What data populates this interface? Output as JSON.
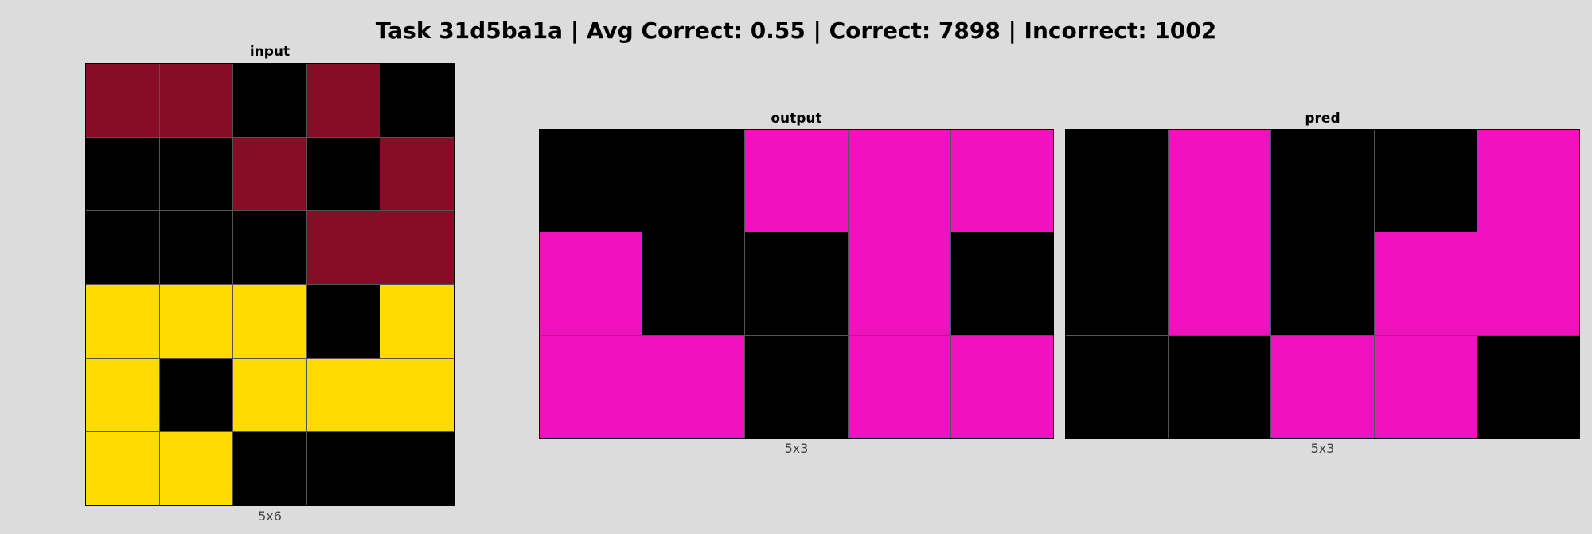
{
  "header": {
    "title": "Task 31d5ba1a | Avg Correct: 0.55 | Correct: 7898 | Incorrect: 1002"
  },
  "palette": {
    "0": "#000000",
    "9": "#870c25",
    "4": "#ffdc00",
    "6": "#f012be"
  },
  "panels": [
    {
      "id": "input",
      "title": "input",
      "dims": "5x6",
      "cols": 5,
      "rows": 6,
      "grid": [
        [
          9,
          9,
          0,
          9,
          0
        ],
        [
          0,
          0,
          9,
          0,
          9
        ],
        [
          0,
          0,
          0,
          9,
          9
        ],
        [
          4,
          4,
          4,
          0,
          4
        ],
        [
          4,
          0,
          4,
          4,
          4
        ],
        [
          4,
          4,
          0,
          0,
          0
        ]
      ]
    },
    {
      "id": "output",
      "title": "output",
      "dims": "5x3",
      "cols": 5,
      "rows": 3,
      "grid": [
        [
          0,
          0,
          6,
          6,
          6
        ],
        [
          6,
          0,
          0,
          6,
          0
        ],
        [
          6,
          6,
          0,
          6,
          6
        ]
      ]
    },
    {
      "id": "pred",
      "title": "pred",
      "dims": "5x3",
      "cols": 5,
      "rows": 3,
      "grid": [
        [
          0,
          6,
          0,
          0,
          6
        ],
        [
          0,
          6,
          0,
          6,
          6
        ],
        [
          0,
          0,
          6,
          6,
          0
        ]
      ]
    }
  ]
}
